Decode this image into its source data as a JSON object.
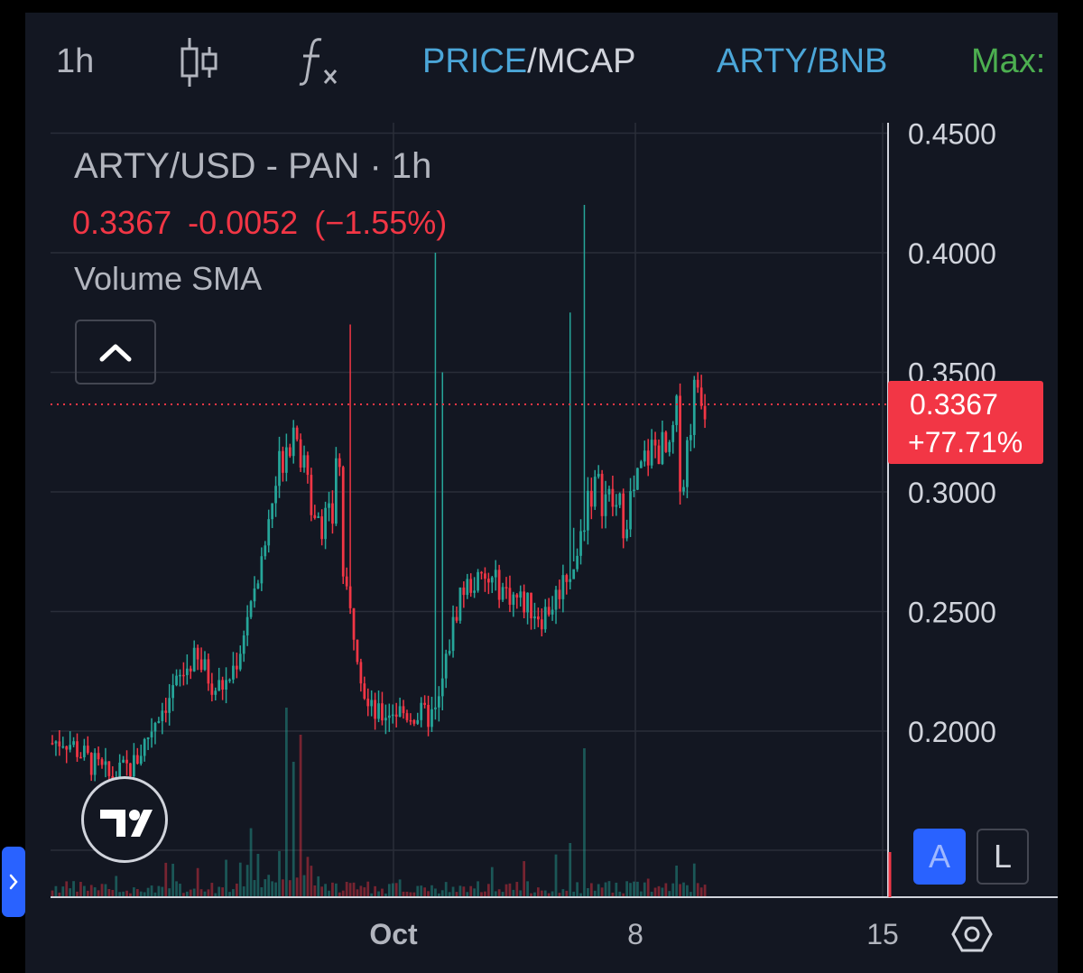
{
  "toolbar": {
    "interval": "1h",
    "price_label": "PRICE",
    "separator": "/",
    "mcap_label": "MCAP",
    "pair": "ARTY/BNB",
    "max_label": "Max:"
  },
  "legend": {
    "title": "ARTY/USD - PAN · 1h",
    "last_price": "0.3367",
    "change": "-0.0052",
    "change_pct": "(−1.55%)",
    "indicator": "Volume SMA"
  },
  "price_tag": {
    "price": "0.3367",
    "change": "+77.71%"
  },
  "scale_buttons": {
    "auto": "A",
    "log": "L"
  },
  "icons": {
    "candle": "candlestick-icon",
    "indicators": "fx-icon",
    "collapse": "chevron-up-icon",
    "logo": "tradingview-logo",
    "expand": "chevron-right-icon",
    "settings": "gear-icon"
  },
  "colors": {
    "background": "#131722",
    "up": "#26a69a",
    "down": "#f23645",
    "accent": "#2962ff",
    "link": "#4ba6d8",
    "max": "#4caf50"
  },
  "chart_data": {
    "type": "candlestick",
    "series_name": "ARTY/USD - PAN",
    "interval": "1h",
    "y_ticks": [
      0.2,
      0.25,
      0.3,
      0.35,
      0.4,
      0.45
    ],
    "y_tick_labels": [
      "0.2000",
      "0.2500",
      "0.3000",
      "0.3500",
      "0.4000",
      "0.4500"
    ],
    "x_tick_labels": [
      "Oct",
      "8",
      "15"
    ],
    "ylim": [
      0.15,
      0.45
    ],
    "last_price": 0.3367,
    "price_path": [
      [
        0,
        0.195
      ],
      [
        2,
        0.197
      ],
      [
        4,
        0.193
      ],
      [
        6,
        0.188
      ],
      [
        8,
        0.184
      ],
      [
        10,
        0.18
      ],
      [
        12,
        0.183
      ],
      [
        14,
        0.186
      ],
      [
        16,
        0.196
      ],
      [
        18,
        0.207
      ],
      [
        20,
        0.214
      ],
      [
        22,
        0.222
      ],
      [
        24,
        0.23
      ],
      [
        26,
        0.226
      ],
      [
        28,
        0.218
      ],
      [
        30,
        0.22
      ],
      [
        32,
        0.232
      ],
      [
        34,
        0.255
      ],
      [
        36,
        0.27
      ],
      [
        38,
        0.3
      ],
      [
        40,
        0.322
      ],
      [
        41,
        0.325
      ],
      [
        42,
        0.33
      ],
      [
        43,
        0.31
      ],
      [
        44,
        0.3
      ],
      [
        46,
        0.29
      ],
      [
        48,
        0.285
      ],
      [
        49,
        0.33
      ],
      [
        50,
        0.26
      ],
      [
        52,
        0.24
      ],
      [
        54,
        0.21
      ],
      [
        56,
        0.206
      ],
      [
        58,
        0.209
      ],
      [
        60,
        0.208
      ],
      [
        62,
        0.207
      ],
      [
        64,
        0.206
      ],
      [
        66,
        0.207
      ],
      [
        68,
        0.235
      ],
      [
        70,
        0.258
      ],
      [
        72,
        0.262
      ],
      [
        74,
        0.262
      ],
      [
        76,
        0.262
      ],
      [
        78,
        0.258
      ],
      [
        80,
        0.255
      ],
      [
        82,
        0.252
      ],
      [
        84,
        0.248
      ],
      [
        86,
        0.254
      ],
      [
        88,
        0.265
      ],
      [
        90,
        0.27
      ],
      [
        92,
        0.302
      ],
      [
        94,
        0.3
      ],
      [
        96,
        0.295
      ],
      [
        98,
        0.29
      ],
      [
        100,
        0.3
      ],
      [
        102,
        0.315
      ],
      [
        104,
        0.32
      ],
      [
        106,
        0.312
      ],
      [
        107,
        0.336
      ],
      [
        108,
        0.3
      ],
      [
        110,
        0.34
      ],
      [
        111,
        0.347
      ],
      [
        112,
        0.3367
      ]
    ]
  }
}
